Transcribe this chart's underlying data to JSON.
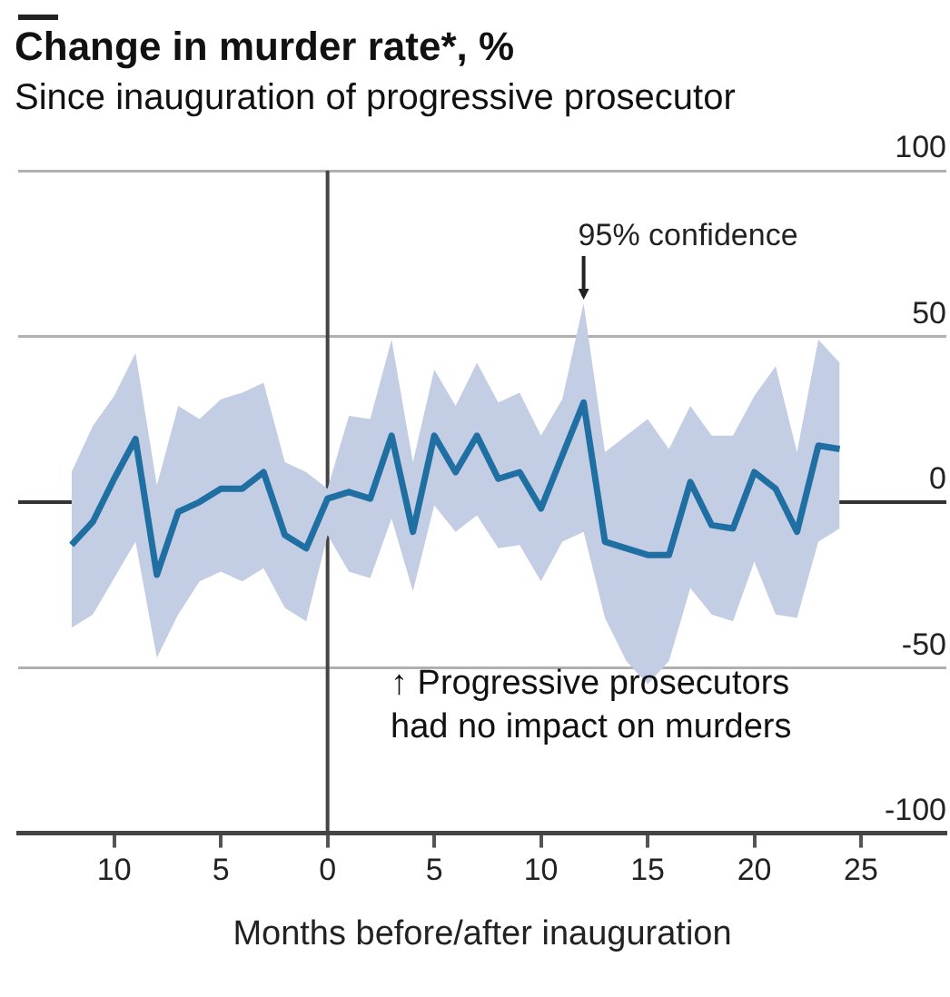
{
  "chart_data": {
    "type": "line",
    "title": "Change in murder rate*, %",
    "subtitle": "Since inauguration of progressive prosecutor",
    "xlabel": "Months before/after inauguration",
    "x": [
      -12,
      -11,
      -10,
      -9,
      -8,
      -7,
      -6,
      -5,
      -4,
      -3,
      -2,
      -1,
      0,
      1,
      2,
      3,
      4,
      5,
      6,
      7,
      8,
      9,
      10,
      11,
      12,
      13,
      14,
      15,
      16,
      17,
      18,
      19,
      20,
      21,
      22,
      23,
      24
    ],
    "series": [
      {
        "color": "#1f6fa3",
        "values": [
          -13,
          -6,
          7,
          19,
          -22,
          -3,
          0,
          4,
          4,
          9,
          -10,
          -14,
          1,
          3,
          1,
          20,
          -9,
          20,
          9,
          20,
          7,
          9,
          -2,
          14,
          30,
          -12,
          -14,
          -16,
          -16,
          6,
          -7,
          -8,
          9,
          4,
          -9,
          17,
          16
        ],
        "lower": [
          -38,
          -34,
          -23,
          -12,
          -47,
          -34,
          -24,
          -21,
          -24,
          -20,
          -32,
          -36,
          -10,
          -21,
          -23,
          -5,
          -27,
          -1,
          -9,
          -4,
          -14,
          -13,
          -24,
          -12,
          -9,
          -35,
          -48,
          -55,
          -48,
          -26,
          -34,
          -36,
          -18,
          -34,
          -35,
          -12,
          -8
        ],
        "upper": [
          9,
          23,
          32,
          45,
          5,
          29,
          25,
          31,
          33,
          36,
          12,
          9,
          4,
          26,
          25,
          49,
          12,
          40,
          29,
          42,
          30,
          33,
          20,
          31,
          60,
          15,
          20,
          25,
          16,
          29,
          20,
          20,
          32,
          41,
          15,
          49,
          42
        ]
      }
    ],
    "xlim": [
      -14.5,
      29
    ],
    "xticks": [
      {
        "value": -10,
        "label": "10"
      },
      {
        "value": -5,
        "label": "5"
      },
      0,
      5,
      10,
      15,
      20,
      25
    ],
    "ylim": [
      -100,
      100
    ],
    "yticks": [
      -100,
      -50,
      0,
      50,
      100
    ],
    "grid": "y",
    "legend": false,
    "ref_lines": [
      {
        "axis": "x",
        "value": 0
      }
    ],
    "annotations": [
      {
        "text": "95% confidence",
        "x": 12,
        "y": 60
      },
      "↑ Progressive prosecutors had no impact on murders"
    ]
  }
}
